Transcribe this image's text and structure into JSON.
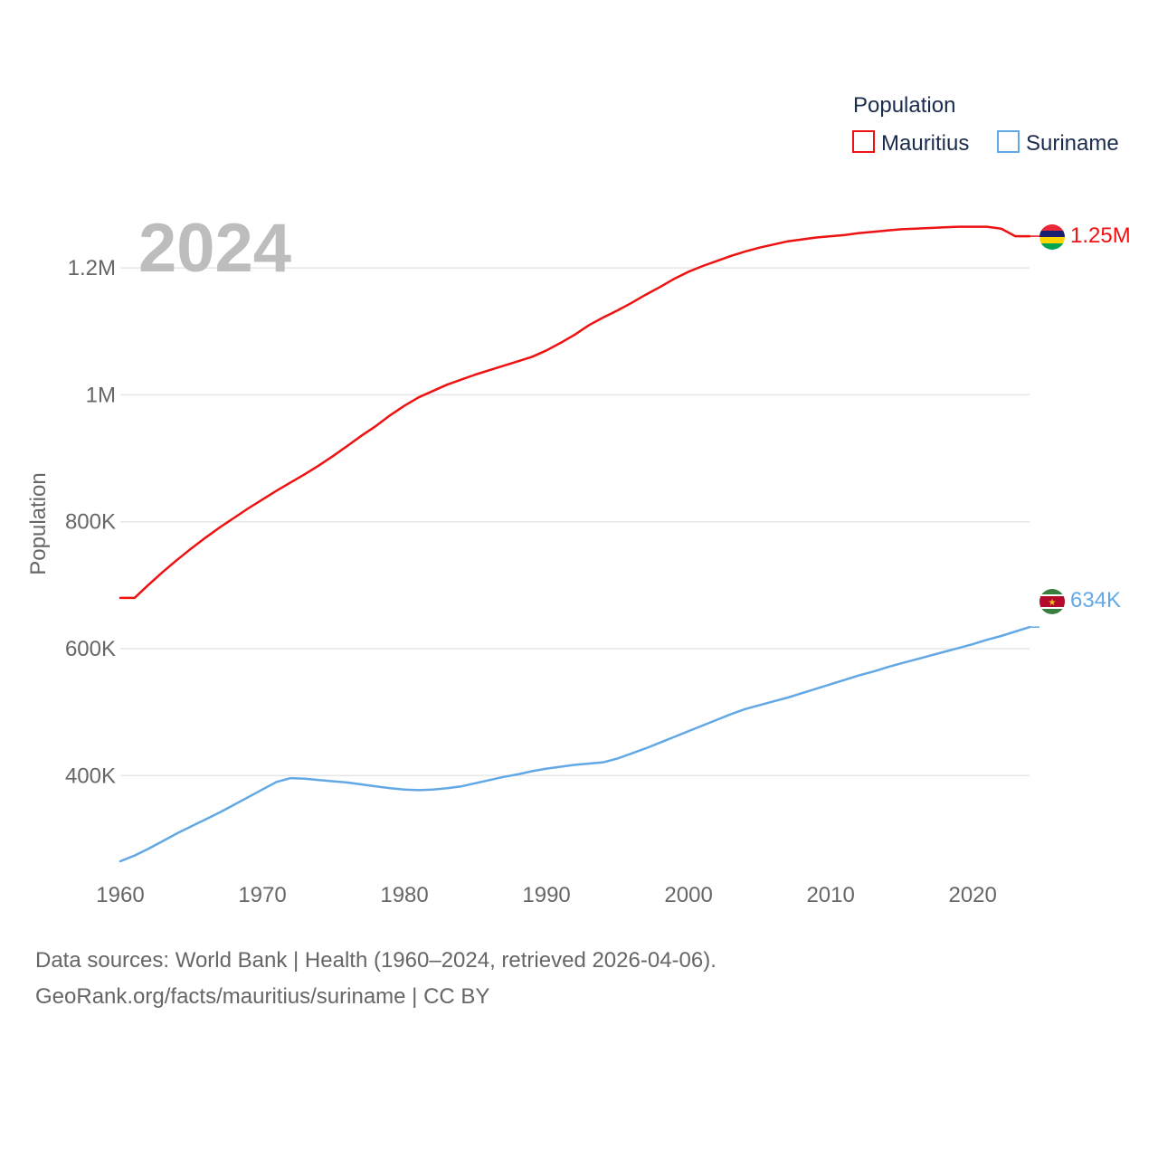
{
  "chart_data": {
    "type": "line",
    "year_label": "2024",
    "ylabel": "Population",
    "legend": {
      "title": "Population",
      "position": "top-right",
      "items": [
        "Mauritius",
        "Suriname"
      ]
    },
    "xlim": [
      1960,
      2024
    ],
    "ylim": [
      265000,
      1300000
    ],
    "x_ticks": [
      1960,
      1970,
      1980,
      1990,
      2000,
      2010,
      2020
    ],
    "x_tick_labels": [
      "1960",
      "1970",
      "1980",
      "1990",
      "2000",
      "2010",
      "2020"
    ],
    "y_ticks": [
      400000,
      600000,
      800000,
      1000000,
      1200000
    ],
    "y_tick_labels": [
      "400K",
      "600K",
      "800K",
      "1M",
      "1.2M"
    ],
    "grid": true,
    "x": [
      1960,
      1961,
      1962,
      1963,
      1964,
      1965,
      1966,
      1967,
      1968,
      1969,
      1970,
      1971,
      1972,
      1973,
      1974,
      1975,
      1976,
      1977,
      1978,
      1979,
      1980,
      1981,
      1982,
      1983,
      1984,
      1985,
      1986,
      1987,
      1988,
      1989,
      1990,
      1991,
      1992,
      1993,
      1994,
      1995,
      1996,
      1997,
      1998,
      1999,
      2000,
      2001,
      2002,
      2003,
      2004,
      2005,
      2006,
      2007,
      2008,
      2009,
      2010,
      2011,
      2012,
      2013,
      2014,
      2015,
      2016,
      2017,
      2018,
      2019,
      2020,
      2021,
      2022,
      2023,
      2024
    ],
    "series": [
      {
        "name": "Mauritius",
        "color": "#ee1111",
        "end_label": "1.25M",
        "values": [
          680000,
          680000,
          701000,
          721000,
          740000,
          758000,
          775000,
          791000,
          806000,
          821000,
          835000,
          849000,
          862000,
          875000,
          889000,
          904000,
          920000,
          936000,
          951000,
          968000,
          983000,
          996000,
          1006000,
          1016000,
          1024000,
          1032000,
          1039000,
          1046000,
          1053000,
          1060000,
          1070000,
          1082000,
          1095000,
          1110000,
          1122000,
          1133000,
          1145000,
          1158000,
          1170000,
          1183000,
          1194000,
          1203000,
          1211000,
          1219000,
          1226000,
          1232000,
          1237000,
          1242000,
          1245000,
          1248000,
          1250000,
          1252000,
          1255000,
          1257000,
          1259000,
          1261000,
          1262000,
          1263000,
          1264000,
          1265000,
          1265000,
          1265000,
          1262000,
          1250000,
          1250000
        ]
      },
      {
        "name": "Suriname",
        "color": "#62a8e5",
        "end_label": "634K",
        "values": [
          265000,
          274000,
          285000,
          297000,
          309000,
          320000,
          331000,
          342000,
          354000,
          366000,
          378000,
          390000,
          396000,
          395000,
          393000,
          391000,
          389000,
          386000,
          383000,
          380000,
          378000,
          377000,
          378000,
          380000,
          383000,
          388000,
          393000,
          398000,
          402000,
          407000,
          411000,
          414000,
          417000,
          419000,
          421000,
          427000,
          435000,
          443000,
          452000,
          461000,
          470000,
          479000,
          488000,
          497000,
          505000,
          511000,
          517000,
          523000,
          530000,
          537000,
          544000,
          551000,
          558000,
          564000,
          571000,
          577000,
          583000,
          589000,
          595000,
          601000,
          607000,
          614000,
          620000,
          627000,
          634000
        ]
      }
    ]
  },
  "footer": {
    "line1": "Data sources: World Bank | Health (1960–2024, retrieved 2026-04-06).",
    "line2": "GeoRank.org/facts/mauritius/suriname | CC BY"
  }
}
